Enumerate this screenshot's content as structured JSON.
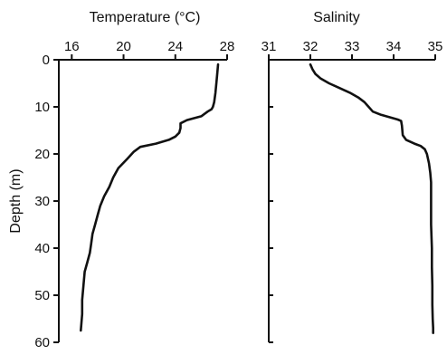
{
  "chart_data": [
    {
      "type": "line",
      "title": "",
      "xlabel": "Temperature (°C)",
      "ylabel": "Depth (m)",
      "xlim": [
        15,
        28
      ],
      "ylim": [
        60,
        0
      ],
      "x_ticks": [
        "16",
        "20",
        "24",
        "28"
      ],
      "y_ticks": [
        "0",
        "10",
        "20",
        "30",
        "40",
        "50",
        "60"
      ],
      "grid": false,
      "legend": "none",
      "x_axis_position": "top",
      "series": [
        {
          "x": [
            27.3,
            27.2,
            27.1,
            27.0,
            26.9,
            26.8,
            26.5,
            26.0,
            24.9,
            24.4,
            24.4,
            24.3,
            24.0,
            23.5,
            22.5,
            21.3,
            20.8,
            20.3,
            19.6,
            19.2,
            18.9,
            18.5,
            18.2,
            18.0,
            17.8,
            17.6,
            17.5,
            17.4,
            17.2,
            17.0,
            16.9,
            16.8,
            16.8,
            16.7
          ],
          "y": [
            1,
            4,
            7,
            9,
            10,
            10.5,
            11,
            12,
            12.8,
            13.5,
            14.5,
            15.5,
            16.3,
            17,
            17.8,
            18.5,
            19.5,
            21,
            23,
            25,
            27,
            29,
            31,
            33,
            35,
            37,
            39,
            41,
            43,
            45,
            48,
            51,
            54,
            57.5
          ]
        }
      ]
    },
    {
      "type": "line",
      "title": "",
      "xlabel": "Salinity",
      "ylabel": "",
      "xlim": [
        31,
        35
      ],
      "ylim": [
        60,
        0
      ],
      "x_ticks": [
        "31",
        "32",
        "33",
        "34",
        "35"
      ],
      "y_ticks": [],
      "grid": false,
      "legend": "none",
      "x_axis_position": "top",
      "series": [
        {
          "x": [
            32.0,
            32.05,
            32.12,
            32.25,
            32.45,
            32.7,
            32.95,
            33.15,
            33.3,
            33.4,
            33.5,
            33.7,
            33.9,
            34.1,
            34.18,
            34.2,
            34.22,
            34.3,
            34.5,
            34.65,
            34.75,
            34.8,
            34.85,
            34.88,
            34.9,
            34.9,
            34.9,
            34.92,
            34.92,
            34.93,
            34.93,
            34.94,
            34.95,
            34.95
          ],
          "y": [
            1,
            2,
            3,
            4,
            5,
            6,
            7,
            8,
            9,
            10,
            11,
            11.7,
            12.2,
            12.7,
            13,
            14,
            16,
            17,
            17.8,
            18.3,
            19,
            20,
            22,
            24,
            26,
            30,
            35,
            40,
            44,
            48,
            52,
            55,
            57,
            58
          ]
        }
      ]
    }
  ]
}
